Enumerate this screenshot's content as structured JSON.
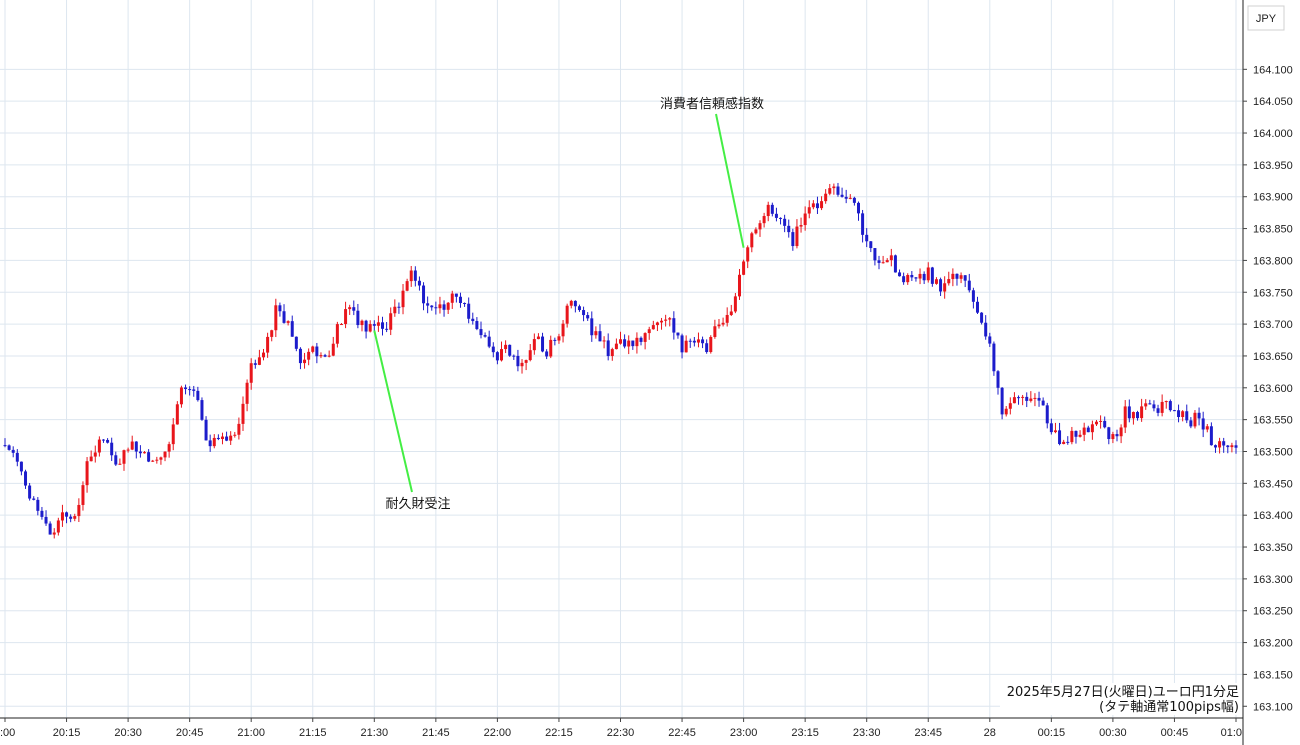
{
  "chart_data": {
    "type": "candlestick",
    "currency": "JPY",
    "caption": [
      "2025年5月27日(火曜日)ユーロ円1分足",
      "(タテ軸通常100pips幅)"
    ],
    "ylim": [
      163.08,
      164.19
    ],
    "y_ticks": [
      "164.100",
      "164.050",
      "164.000",
      "163.950",
      "163.900",
      "163.850",
      "163.800",
      "163.750",
      "163.700",
      "163.650",
      "163.600",
      "163.550",
      "163.500",
      "163.450",
      "163.400",
      "163.350",
      "163.300",
      "163.250",
      "163.200",
      "163.150",
      "163.100"
    ],
    "x_ticks": [
      ":00",
      "20:15",
      "20:30",
      "20:45",
      "21:00",
      "21:15",
      "21:30",
      "21:45",
      "22:00",
      "22:15",
      "22:30",
      "22:45",
      "23:00",
      "23:15",
      "23:30",
      "23:45",
      "28",
      "00:15",
      "00:30",
      "00:45",
      "01:0"
    ],
    "x_range": [
      "20:00",
      "01:00"
    ],
    "up_color": "#e8151b",
    "down_color": "#1c1ccb",
    "annotations": [
      {
        "text": "耐久財受注",
        "time": "21:30",
        "price": 163.69
      },
      {
        "text": "消費者信頼感指数",
        "time": "23:00",
        "price": 163.82
      }
    ],
    "anchors": [
      {
        "t": "20:00",
        "p": 163.51
      },
      {
        "t": "20:02",
        "p": 163.5
      },
      {
        "t": "20:05",
        "p": 163.44
      },
      {
        "t": "20:08",
        "p": 163.41
      },
      {
        "t": "20:11",
        "p": 163.37
      },
      {
        "t": "20:14",
        "p": 163.41
      },
      {
        "t": "20:17",
        "p": 163.4
      },
      {
        "t": "20:20",
        "p": 163.48
      },
      {
        "t": "20:24",
        "p": 163.52
      },
      {
        "t": "20:27",
        "p": 163.48
      },
      {
        "t": "20:30",
        "p": 163.51
      },
      {
        "t": "20:33",
        "p": 163.5
      },
      {
        "t": "20:37",
        "p": 163.48
      },
      {
        "t": "20:40",
        "p": 163.51
      },
      {
        "t": "20:43",
        "p": 163.6
      },
      {
        "t": "20:47",
        "p": 163.58
      },
      {
        "t": "20:49",
        "p": 163.51
      },
      {
        "t": "20:53",
        "p": 163.52
      },
      {
        "t": "20:57",
        "p": 163.54
      },
      {
        "t": "21:00",
        "p": 163.63
      },
      {
        "t": "21:03",
        "p": 163.65
      },
      {
        "t": "21:06",
        "p": 163.72
      },
      {
        "t": "21:09",
        "p": 163.7
      },
      {
        "t": "21:12",
        "p": 163.64
      },
      {
        "t": "21:15",
        "p": 163.66
      },
      {
        "t": "21:18",
        "p": 163.64
      },
      {
        "t": "21:21",
        "p": 163.7
      },
      {
        "t": "21:24",
        "p": 163.72
      },
      {
        "t": "21:27",
        "p": 163.7
      },
      {
        "t": "21:30",
        "p": 163.69
      },
      {
        "t": "21:33",
        "p": 163.7
      },
      {
        "t": "21:36",
        "p": 163.73
      },
      {
        "t": "21:39",
        "p": 163.79
      },
      {
        "t": "21:42",
        "p": 163.73
      },
      {
        "t": "21:45",
        "p": 163.72
      },
      {
        "t": "21:48",
        "p": 163.74
      },
      {
        "t": "21:51",
        "p": 163.74
      },
      {
        "t": "21:54",
        "p": 163.7
      },
      {
        "t": "21:57",
        "p": 163.67
      },
      {
        "t": "22:00",
        "p": 163.65
      },
      {
        "t": "22:03",
        "p": 163.66
      },
      {
        "t": "22:06",
        "p": 163.63
      },
      {
        "t": "22:09",
        "p": 163.68
      },
      {
        "t": "22:12",
        "p": 163.66
      },
      {
        "t": "22:15",
        "p": 163.68
      },
      {
        "t": "22:18",
        "p": 163.74
      },
      {
        "t": "22:21",
        "p": 163.72
      },
      {
        "t": "22:24",
        "p": 163.68
      },
      {
        "t": "22:27",
        "p": 163.66
      },
      {
        "t": "22:30",
        "p": 163.67
      },
      {
        "t": "22:33",
        "p": 163.66
      },
      {
        "t": "22:36",
        "p": 163.69
      },
      {
        "t": "22:39",
        "p": 163.71
      },
      {
        "t": "22:42",
        "p": 163.7
      },
      {
        "t": "22:45",
        "p": 163.66
      },
      {
        "t": "22:48",
        "p": 163.67
      },
      {
        "t": "22:51",
        "p": 163.66
      },
      {
        "t": "22:54",
        "p": 163.7
      },
      {
        "t": "22:57",
        "p": 163.73
      },
      {
        "t": "23:00",
        "p": 163.8
      },
      {
        "t": "23:03",
        "p": 163.85
      },
      {
        "t": "23:06",
        "p": 163.88
      },
      {
        "t": "23:09",
        "p": 163.86
      },
      {
        "t": "23:12",
        "p": 163.83
      },
      {
        "t": "23:15",
        "p": 163.87
      },
      {
        "t": "23:18",
        "p": 163.89
      },
      {
        "t": "23:21",
        "p": 163.91
      },
      {
        "t": "23:24",
        "p": 163.91
      },
      {
        "t": "23:27",
        "p": 163.88
      },
      {
        "t": "23:30",
        "p": 163.83
      },
      {
        "t": "23:33",
        "p": 163.8
      },
      {
        "t": "23:36",
        "p": 163.8
      },
      {
        "t": "23:39",
        "p": 163.77
      },
      {
        "t": "23:42",
        "p": 163.77
      },
      {
        "t": "23:45",
        "p": 163.78
      },
      {
        "t": "23:48",
        "p": 163.76
      },
      {
        "t": "23:51",
        "p": 163.78
      },
      {
        "t": "23:54",
        "p": 163.77
      },
      {
        "t": "23:57",
        "p": 163.72
      },
      {
        "t": "00:00",
        "p": 163.66
      },
      {
        "t": "00:03",
        "p": 163.56
      },
      {
        "t": "00:06",
        "p": 163.59
      },
      {
        "t": "00:09",
        "p": 163.59
      },
      {
        "t": "00:12",
        "p": 163.58
      },
      {
        "t": "00:15",
        "p": 163.54
      },
      {
        "t": "00:18",
        "p": 163.51
      },
      {
        "t": "00:21",
        "p": 163.53
      },
      {
        "t": "00:24",
        "p": 163.53
      },
      {
        "t": "00:27",
        "p": 163.54
      },
      {
        "t": "00:30",
        "p": 163.52
      },
      {
        "t": "00:33",
        "p": 163.56
      },
      {
        "t": "00:36",
        "p": 163.56
      },
      {
        "t": "00:39",
        "p": 163.57
      },
      {
        "t": "00:42",
        "p": 163.57
      },
      {
        "t": "00:45",
        "p": 163.57
      },
      {
        "t": "00:48",
        "p": 163.55
      },
      {
        "t": "00:51",
        "p": 163.55
      },
      {
        "t": "00:54",
        "p": 163.52
      },
      {
        "t": "00:57",
        "p": 163.51
      },
      {
        "t": "01:00",
        "p": 163.51
      }
    ]
  }
}
